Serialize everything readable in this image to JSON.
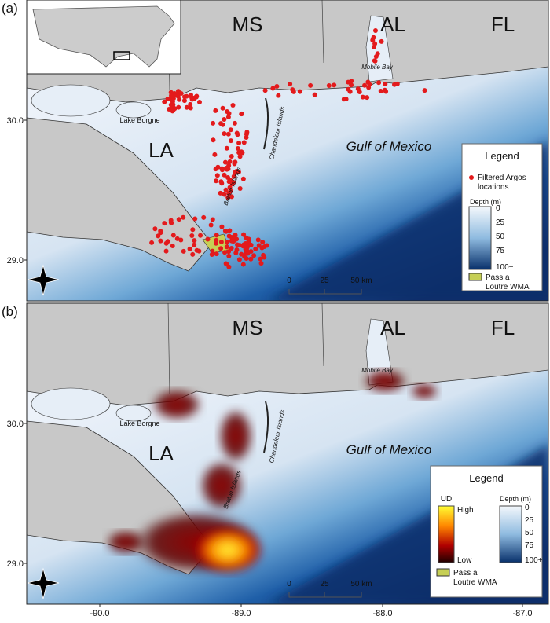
{
  "x_axis": {
    "ticks": [
      "-90.0",
      "-89.0",
      "-88.0",
      "-87.0"
    ]
  },
  "panels": [
    {
      "label": "(a)",
      "lat_ticks": [
        "30.0",
        "29.0"
      ],
      "regions": [
        "MS",
        "AL",
        "FL",
        "LA"
      ],
      "places": [
        "Lake Borgne",
        "Chandeleur Islands",
        "Breton Islands",
        "Mobile Bay",
        "Gulf of Mexico"
      ],
      "scale": [
        "0",
        "25",
        "50 km"
      ],
      "legend": {
        "title": "Legend",
        "points": [
          "Filtered Argos",
          "locations"
        ],
        "depth_title": "Depth (m)",
        "depth_ticks": [
          "0",
          "25",
          "50",
          "75",
          "100+"
        ],
        "wma": [
          "Pass a",
          "Loutre WMA"
        ]
      }
    },
    {
      "label": "(b)",
      "lat_ticks": [
        "30.0",
        "29.0"
      ],
      "regions": [
        "MS",
        "AL",
        "FL",
        "LA"
      ],
      "places": [
        "Lake Borgne",
        "Chandeleur Islands",
        "Breton Islands",
        "Mobile Bay",
        "Gulf of Mexico"
      ],
      "scale": [
        "0",
        "25",
        "50 km"
      ],
      "legend": {
        "title": "Legend",
        "ud_title": "UD",
        "ud_high": "High",
        "ud_low": "Low",
        "depth_title": "Depth (m)",
        "depth_ticks": [
          "0",
          "25",
          "50",
          "75",
          "100+"
        ],
        "wma": [
          "Pass a",
          "Loutre WMA"
        ]
      }
    }
  ]
}
